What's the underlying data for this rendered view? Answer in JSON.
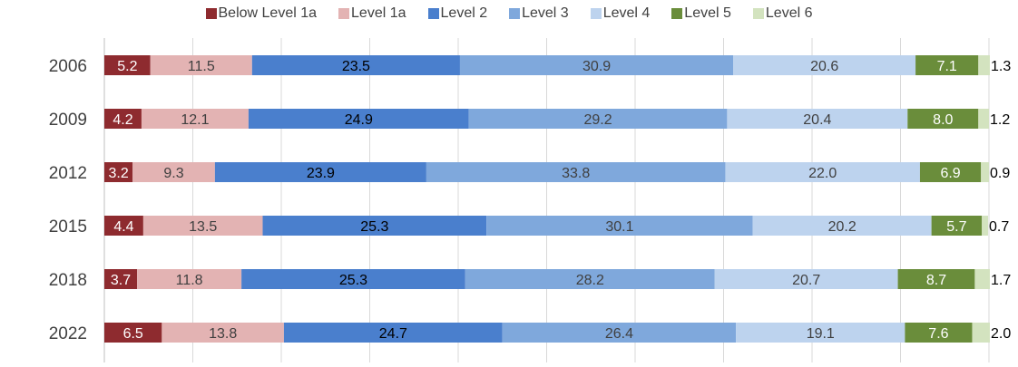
{
  "chart_data": {
    "type": "bar",
    "orientation": "horizontal",
    "stacked": true,
    "title": "",
    "xlabel": "",
    "ylabel": "",
    "xlim": [
      0,
      100
    ],
    "grid": "vertical gridlines",
    "legend_position": "top",
    "categories": [
      "2006",
      "2009",
      "2012",
      "2015",
      "2018",
      "2022"
    ],
    "series": [
      {
        "name": "Below Level 1a",
        "color": "#8e2b2f",
        "label_color": "#ffffff",
        "values": [
          5.2,
          4.2,
          3.2,
          4.4,
          3.7,
          6.5
        ]
      },
      {
        "name": "Level 1a",
        "color": "#e3b3b3",
        "label_color": "#404040",
        "values": [
          11.5,
          12.1,
          9.3,
          13.5,
          11.8,
          13.8
        ]
      },
      {
        "name": "Level 2",
        "color": "#4a7fcd",
        "label_color": "#000000",
        "values": [
          23.5,
          24.9,
          23.9,
          25.3,
          25.3,
          24.7
        ]
      },
      {
        "name": "Level 3",
        "color": "#7fa8dc",
        "label_color": "#404040",
        "values": [
          30.9,
          29.2,
          33.8,
          30.1,
          28.2,
          26.4
        ]
      },
      {
        "name": "Level 4",
        "color": "#bdd3ee",
        "label_color": "#404040",
        "values": [
          20.6,
          20.4,
          22.0,
          20.2,
          20.7,
          19.1
        ]
      },
      {
        "name": "Level 5",
        "color": "#6a8d3b",
        "label_color": "#ffffff",
        "values": [
          7.1,
          8.0,
          6.9,
          5.7,
          8.7,
          7.6
        ]
      },
      {
        "name": "Level 6",
        "color": "#d3e3bf",
        "label_color": "#404040",
        "values": [
          1.3,
          1.2,
          0.9,
          0.7,
          1.7,
          2.0
        ]
      }
    ]
  }
}
